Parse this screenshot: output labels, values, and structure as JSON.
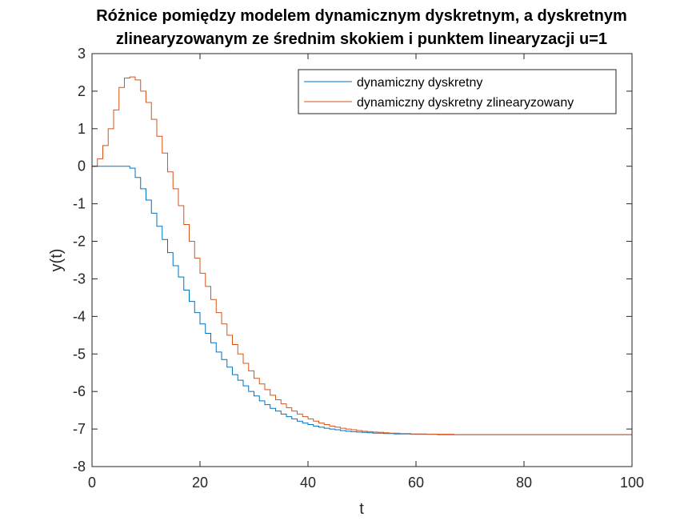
{
  "chart_data": {
    "type": "line",
    "title_lines": [
      "Różnice pomiędzy modelem dynamicznym dyskretnym, a dyskretnym",
      "zlinearyzowanym ze średnim skokiem i punktem linearyzacji u=1"
    ],
    "xlabel": "t",
    "ylabel": "y(t)",
    "xlim": [
      0,
      100
    ],
    "ylim": [
      -8,
      3
    ],
    "x_ticks": [
      0,
      20,
      40,
      60,
      80,
      100
    ],
    "y_ticks": [
      3,
      2,
      1,
      0,
      -1,
      -2,
      -3,
      -4,
      -5,
      -6,
      -7,
      -8
    ],
    "grid": false,
    "legend_position": "top-right",
    "step": 1,
    "series": [
      {
        "name": "dynamiczny dyskretny",
        "color": "#0072BD",
        "x": [
          0,
          1,
          2,
          3,
          4,
          5,
          6,
          7,
          8,
          9,
          10,
          11,
          12,
          13,
          14,
          15,
          16,
          17,
          18,
          19,
          20,
          21,
          22,
          23,
          24,
          25,
          26,
          27,
          28,
          29,
          30,
          31,
          32,
          33,
          34,
          35,
          36,
          37,
          38,
          39,
          40,
          41,
          42,
          43,
          44,
          45,
          46,
          47,
          48,
          49,
          50,
          51,
          52,
          53,
          54,
          55,
          56,
          57,
          58,
          59,
          60,
          61,
          62,
          63,
          64,
          65,
          66,
          67,
          68,
          69,
          70,
          75,
          80,
          85,
          90,
          95,
          100
        ],
        "values": [
          0,
          0,
          0,
          0,
          0,
          0,
          0,
          -0.05,
          -0.3,
          -0.6,
          -0.9,
          -1.25,
          -1.6,
          -1.95,
          -2.3,
          -2.65,
          -2.95,
          -3.3,
          -3.6,
          -3.9,
          -4.2,
          -4.45,
          -4.7,
          -4.95,
          -5.15,
          -5.35,
          -5.55,
          -5.7,
          -5.85,
          -6.0,
          -6.12,
          -6.25,
          -6.35,
          -6.45,
          -6.52,
          -6.6,
          -6.67,
          -6.73,
          -6.79,
          -6.84,
          -6.88,
          -6.92,
          -6.95,
          -6.98,
          -7.0,
          -7.02,
          -7.04,
          -7.06,
          -7.07,
          -7.08,
          -7.09,
          -7.1,
          -7.11,
          -7.11,
          -7.12,
          -7.12,
          -7.13,
          -7.13,
          -7.13,
          -7.14,
          -7.14,
          -7.14,
          -7.14,
          -7.14,
          -7.15,
          -7.15,
          -7.15,
          -7.15,
          -7.15,
          -7.15,
          -7.15,
          -7.15,
          -7.15,
          -7.15,
          -7.15,
          -7.15,
          -7.15
        ]
      },
      {
        "name": "dynamiczny dyskretny zlinearyzowany",
        "color": "#D95319",
        "x": [
          0,
          1,
          2,
          3,
          4,
          5,
          6,
          7,
          8,
          9,
          10,
          11,
          12,
          13,
          14,
          15,
          16,
          17,
          18,
          19,
          20,
          21,
          22,
          23,
          24,
          25,
          26,
          27,
          28,
          29,
          30,
          31,
          32,
          33,
          34,
          35,
          36,
          37,
          38,
          39,
          40,
          41,
          42,
          43,
          44,
          45,
          46,
          47,
          48,
          49,
          50,
          51,
          52,
          53,
          54,
          55,
          56,
          57,
          58,
          59,
          60,
          61,
          62,
          63,
          64,
          65,
          66,
          67,
          68,
          69,
          70,
          75,
          80,
          85,
          90,
          95,
          100
        ],
        "values": [
          0,
          0.2,
          0.55,
          1.0,
          1.5,
          2.1,
          2.35,
          2.38,
          2.3,
          2.0,
          1.7,
          1.25,
          0.8,
          0.35,
          -0.15,
          -0.6,
          -1.05,
          -1.55,
          -2.0,
          -2.45,
          -2.85,
          -3.2,
          -3.55,
          -3.9,
          -4.2,
          -4.5,
          -4.75,
          -5.0,
          -5.25,
          -5.45,
          -5.65,
          -5.8,
          -5.95,
          -6.1,
          -6.22,
          -6.33,
          -6.43,
          -6.52,
          -6.6,
          -6.67,
          -6.73,
          -6.79,
          -6.84,
          -6.88,
          -6.92,
          -6.95,
          -6.98,
          -7.0,
          -7.02,
          -7.04,
          -7.06,
          -7.07,
          -7.08,
          -7.09,
          -7.1,
          -7.11,
          -7.11,
          -7.12,
          -7.12,
          -7.13,
          -7.13,
          -7.13,
          -7.14,
          -7.14,
          -7.14,
          -7.14,
          -7.14,
          -7.15,
          -7.15,
          -7.15,
          -7.15,
          -7.15,
          -7.15,
          -7.15,
          -7.15,
          -7.15,
          -7.15
        ]
      }
    ]
  }
}
